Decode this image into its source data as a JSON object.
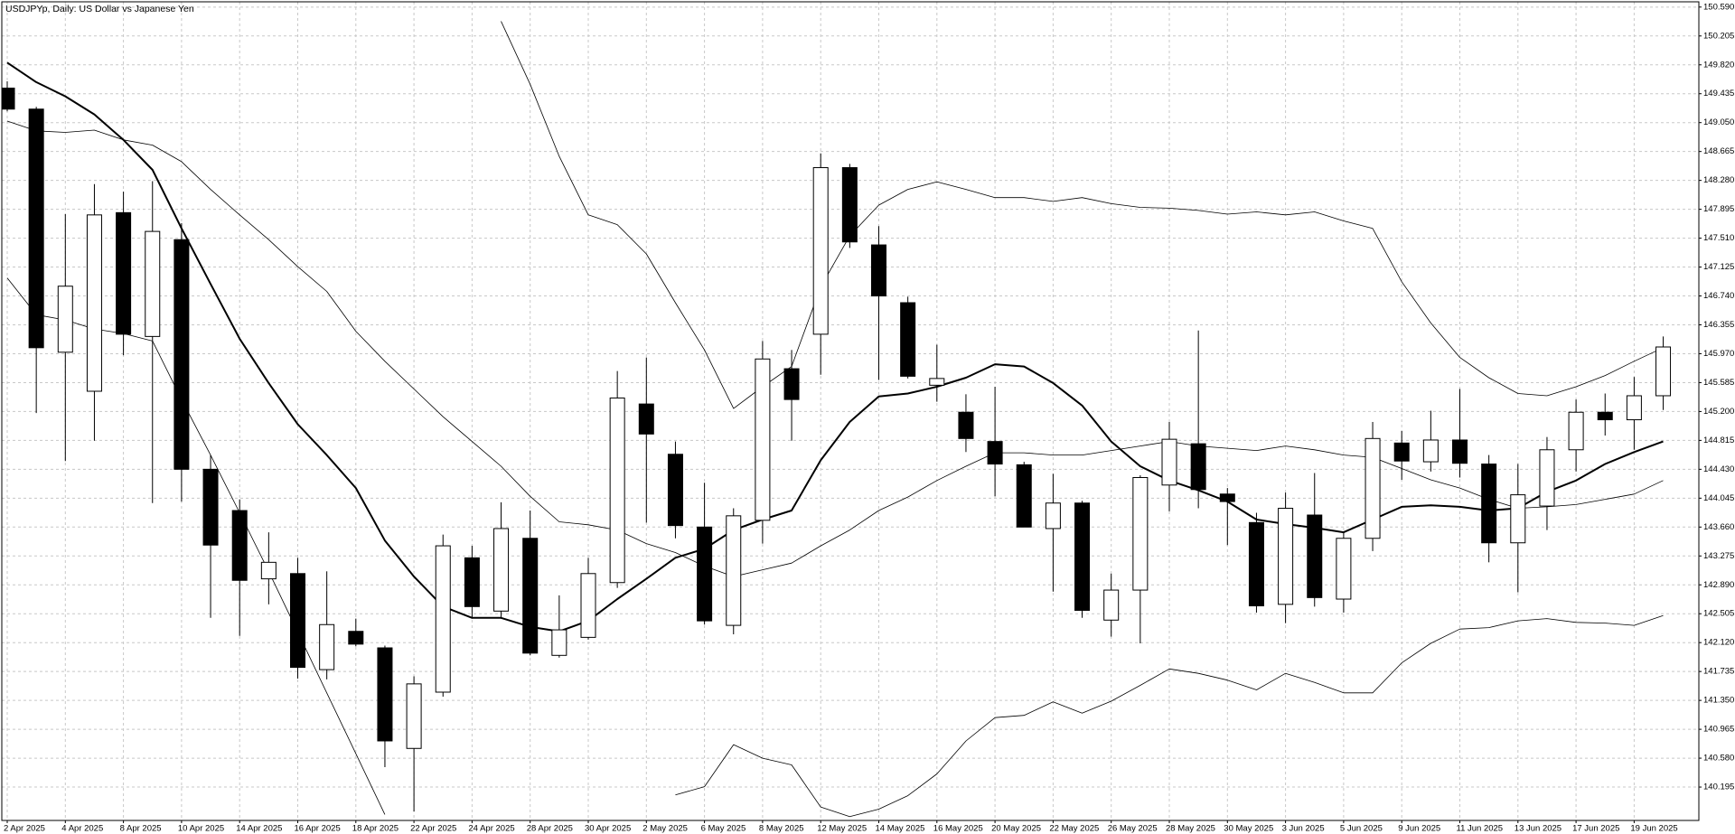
{
  "chart_data": {
    "type": "candlestick",
    "title": "USDJPYp, Daily:  US Dollar vs Japanese Yen",
    "categories": [
      "2 Apr 2025",
      null,
      "4 Apr 2025",
      null,
      "8 Apr 2025",
      null,
      "10 Apr 2025",
      null,
      "14 Apr 2025",
      null,
      "16 Apr 2025",
      null,
      "18 Apr 2025",
      null,
      "22 Apr 2025",
      null,
      "24 Apr 2025",
      null,
      "28 Apr 2025",
      null,
      "30 Apr 2025",
      null,
      "2 May 2025",
      null,
      "6 May 2025",
      null,
      "8 May 2025",
      null,
      "12 May 2025",
      null,
      "14 May 2025",
      null,
      "16 May 2025",
      null,
      "20 May 2025",
      null,
      "22 May 2025",
      null,
      "26 May 2025",
      null,
      "28 May 2025",
      null,
      "30 May 2025",
      null,
      "3 Jun 2025",
      null,
      "5 Jun 2025",
      null,
      "9 Jun 2025",
      null,
      "11 Jun 2025",
      null,
      "13 Jun 2025",
      null,
      "17 Jun 2025",
      null,
      "19 Jun 2025",
      null
    ],
    "open": [
      149.51,
      149.23,
      145.99,
      145.47,
      147.85,
      146.2,
      147.49,
      144.43,
      143.88,
      142.97,
      143.04,
      141.76,
      142.27,
      142.05,
      140.71,
      141.46,
      143.25,
      142.54,
      143.51,
      141.95,
      142.19,
      142.92,
      145.3,
      144.63,
      143.66,
      142.35,
      143.75,
      145.77,
      146.23,
      148.45,
      147.42,
      146.65,
      145.55,
      145.19,
      144.8,
      144.49,
      143.64,
      143.98,
      142.42,
      142.82,
      144.22,
      144.77,
      144.1,
      143.72,
      142.63,
      143.82,
      142.7,
      143.51,
      144.78,
      144.53,
      144.82,
      144.5,
      143.45,
      143.94,
      144.69,
      145.19,
      145.09,
      145.41
    ],
    "high": [
      149.6,
      149.26,
      147.83,
      148.23,
      148.13,
      148.27,
      147.71,
      144.62,
      144.03,
      143.59,
      143.25,
      143.07,
      142.44,
      142.08,
      141.67,
      143.56,
      143.41,
      143.99,
      143.88,
      142.75,
      143.25,
      145.74,
      145.92,
      144.8,
      144.25,
      143.91,
      146.14,
      146.02,
      148.64,
      148.5,
      147.67,
      146.73,
      146.09,
      145.43,
      145.53,
      144.53,
      144.37,
      144.01,
      143.04,
      144.35,
      145.06,
      146.28,
      144.18,
      143.85,
      144.12,
      144.38,
      143.6,
      145.06,
      144.94,
      145.21,
      145.5,
      144.62,
      144.5,
      144.86,
      145.36,
      145.44,
      145.66,
      146.2
    ],
    "low": [
      149.2,
      145.18,
      144.54,
      144.81,
      145.95,
      143.98,
      144.0,
      142.45,
      142.21,
      142.63,
      141.64,
      141.63,
      142.07,
      140.46,
      139.87,
      141.4,
      142.44,
      142.44,
      141.95,
      141.92,
      142.16,
      142.85,
      143.72,
      143.51,
      142.36,
      142.23,
      143.44,
      144.81,
      145.69,
      147.38,
      145.62,
      145.64,
      145.33,
      144.66,
      144.07,
      143.66,
      142.8,
      142.45,
      142.2,
      142.11,
      143.87,
      143.91,
      143.42,
      142.52,
      142.38,
      142.6,
      142.52,
      143.34,
      144.29,
      144.4,
      144.32,
      143.19,
      142.79,
      143.62,
      144.4,
      144.88,
      144.69,
      145.22
    ],
    "close": [
      149.23,
      146.05,
      146.87,
      147.82,
      146.23,
      147.6,
      144.43,
      143.42,
      142.95,
      143.19,
      141.79,
      142.36,
      142.1,
      140.81,
      141.57,
      143.41,
      142.6,
      143.64,
      141.98,
      142.29,
      143.04,
      145.38,
      144.9,
      143.68,
      142.41,
      143.81,
      145.9,
      145.36,
      148.45,
      147.46,
      146.74,
      145.67,
      145.64,
      144.84,
      144.5,
      143.66,
      143.98,
      142.55,
      142.82,
      144.32,
      144.83,
      144.16,
      144.0,
      142.61,
      143.91,
      142.72,
      143.51,
      144.84,
      144.54,
      144.82,
      144.51,
      143.45,
      144.09,
      144.69,
      145.19,
      145.09,
      145.41,
      146.06
    ],
    "up_color": "#ffffff",
    "down_color": "#000000",
    "lines": [
      {
        "color": "#000000",
        "line_width": 2,
        "values": [
          149.85,
          149.59,
          149.4,
          149.16,
          148.82,
          148.42,
          147.64,
          146.9,
          146.17,
          145.58,
          145.03,
          144.62,
          144.18,
          143.48,
          143.0,
          142.6,
          142.45,
          142.45,
          142.33,
          142.27,
          142.41,
          142.7,
          142.97,
          143.25,
          143.37,
          143.62,
          143.76,
          143.88,
          144.55,
          145.06,
          145.4,
          145.44,
          145.53,
          145.65,
          145.83,
          145.8,
          145.58,
          145.28,
          144.8,
          144.47,
          144.28,
          144.15,
          144.0,
          143.76,
          143.7,
          143.65,
          143.59,
          143.76,
          143.93,
          143.95,
          143.93,
          143.88,
          143.91,
          144.13,
          144.28,
          144.5,
          144.66,
          144.8
        ]
      },
      {
        "color": "#000000",
        "line_width": 0.8,
        "values": [
          149.07,
          148.94,
          148.92,
          148.95,
          148.82,
          148.75,
          148.53,
          148.16,
          147.82,
          147.49,
          147.13,
          146.8,
          146.27,
          145.87,
          145.5,
          145.13,
          144.8,
          144.47,
          144.07,
          143.73,
          143.69,
          143.62,
          143.44,
          143.32,
          143.14,
          143.0,
          143.09,
          143.18,
          143.41,
          143.62,
          143.88,
          144.06,
          144.28,
          144.47,
          144.65,
          144.65,
          144.62,
          144.62,
          144.68,
          144.74,
          144.8,
          144.74,
          144.71,
          144.68,
          144.74,
          144.69,
          144.62,
          144.59,
          144.44,
          144.29,
          144.18,
          144.03,
          143.91,
          143.93,
          143.96,
          144.03,
          144.1,
          144.28
        ]
      },
      {
        "color": "#000000",
        "line_width": 0.8,
        "values": [
          null,
          null,
          null,
          null,
          null,
          null,
          null,
          null,
          null,
          null,
          null,
          null,
          null,
          null,
          null,
          null,
          null,
          150.4,
          149.56,
          148.6,
          147.82,
          147.69,
          147.3,
          146.65,
          146.02,
          145.24,
          145.53,
          145.8,
          146.86,
          147.54,
          147.95,
          148.16,
          148.26,
          148.16,
          148.05,
          148.05,
          148.0,
          148.05,
          147.97,
          147.92,
          147.91,
          147.88,
          147.83,
          147.86,
          147.82,
          147.86,
          147.74,
          147.64,
          146.93,
          146.38,
          145.92,
          145.65,
          145.44,
          145.41,
          145.53,
          145.68,
          145.87,
          146.05
        ]
      },
      {
        "color": "#000000",
        "line_width": 0.8,
        "values": [
          146.98,
          146.49,
          146.42,
          146.3,
          146.24,
          146.14,
          145.36,
          144.62,
          143.85,
          143.07,
          142.26,
          141.45,
          140.64,
          139.83,
          null,
          null,
          null,
          null,
          null,
          null,
          null,
          null,
          null,
          140.09,
          140.2,
          140.76,
          140.58,
          140.49,
          139.93,
          139.8,
          139.9,
          140.08,
          140.37,
          140.81,
          141.12,
          141.15,
          141.33,
          141.18,
          141.34,
          141.55,
          141.77,
          141.71,
          141.62,
          141.49,
          141.71,
          141.59,
          141.45,
          141.45,
          141.85,
          142.11,
          142.3,
          142.32,
          142.41,
          142.44,
          142.39,
          142.38,
          142.35,
          142.48
        ]
      }
    ],
    "ylim": [
      139.75,
      150.66
    ],
    "yticks": [
      {
        "value": 150.59,
        "label": "150.590"
      },
      150.205,
      {
        "value": 149.82,
        "label": "149.820"
      },
      149.435,
      {
        "value": 149.05,
        "label": "149.050"
      },
      148.665,
      {
        "value": 148.28,
        "label": "148.280"
      },
      147.895,
      {
        "value": 147.51,
        "label": "147.510"
      },
      147.125,
      {
        "value": 146.74,
        "label": "146.740"
      },
      146.355,
      {
        "value": 145.97,
        "label": "145.970"
      },
      145.585,
      {
        "value": 145.2,
        "label": "145.200"
      },
      144.815,
      {
        "value": 144.43,
        "label": "144.430"
      },
      144.045,
      {
        "value": 143.66,
        "label": "143.660"
      },
      143.275,
      {
        "value": 142.89,
        "label": "142.890"
      },
      142.505,
      {
        "value": 142.12,
        "label": "142.120"
      },
      141.735,
      {
        "value": 141.35,
        "label": "141.350"
      },
      140.965,
      {
        "value": 140.58,
        "label": "140.580"
      },
      140.195
    ],
    "grid": true
  }
}
